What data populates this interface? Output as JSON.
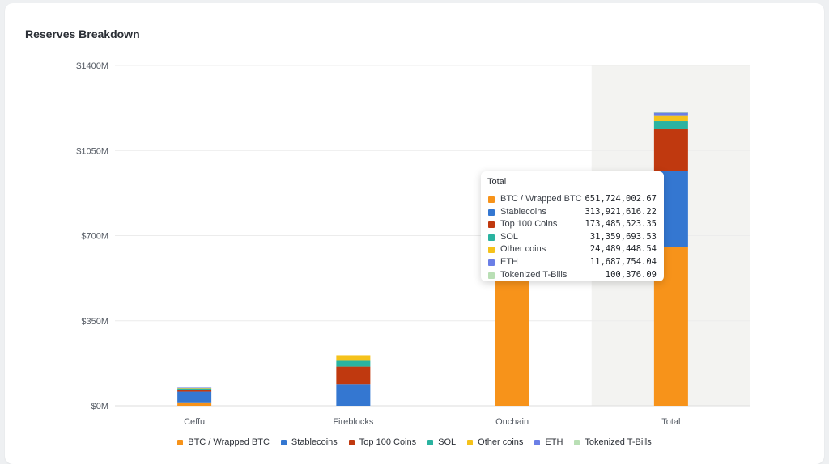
{
  "card": {
    "title": "Reserves Breakdown"
  },
  "chart_data": {
    "type": "bar",
    "stacked": true,
    "title": "Reserves Breakdown",
    "categories": [
      "Ceffu",
      "Fireblocks",
      "Onchain",
      "Total"
    ],
    "y_ticks": [
      "$0M",
      "$350M",
      "$700M",
      "$1050M",
      "$1400M"
    ],
    "ylim": [
      0,
      1400
    ],
    "grid": true,
    "highlighted_category": "Total",
    "legend_position": "bottom",
    "series": [
      {
        "name": "BTC / Wrapped BTC",
        "color": "#f7931a",
        "values": [
          14,
          0,
          527,
          651.72
        ]
      },
      {
        "name": "Stablecoins",
        "color": "#3477d1",
        "values": [
          44,
          89,
          0,
          313.92
        ]
      },
      {
        "name": "Top 100 Coins",
        "color": "#c0390f",
        "values": [
          8,
          72,
          0,
          173.49
        ]
      },
      {
        "name": "SOL",
        "color": "#2ab3a0",
        "values": [
          5,
          27,
          0,
          31.36
        ]
      },
      {
        "name": "Other coins",
        "color": "#f5c21b",
        "values": [
          2,
          20,
          0,
          24.49
        ]
      },
      {
        "name": "ETH",
        "color": "#6b7fe6",
        "values": [
          2,
          0,
          0,
          11.69
        ]
      },
      {
        "name": "Tokenized T-Bills",
        "color": "#b9dfb5",
        "values": [
          0,
          0,
          0,
          0.1
        ]
      }
    ]
  },
  "tooltip": {
    "title": "Total",
    "rows": [
      {
        "label": "BTC / Wrapped BTC",
        "value": "651,724,002.67",
        "color": "#f7931a"
      },
      {
        "label": "Stablecoins",
        "value": "313,921,616.22",
        "color": "#3477d1"
      },
      {
        "label": "Top 100 Coins",
        "value": "173,485,523.35",
        "color": "#c0390f"
      },
      {
        "label": "SOL",
        "value": "31,359,693.53",
        "color": "#2ab3a0"
      },
      {
        "label": "Other coins",
        "value": "24,489,448.54",
        "color": "#f5c21b"
      },
      {
        "label": "ETH",
        "value": "11,687,754.04",
        "color": "#6b7fe6"
      },
      {
        "label": "Tokenized T-Bills",
        "value": "100,376.09",
        "color": "#b9dfb5"
      }
    ]
  }
}
